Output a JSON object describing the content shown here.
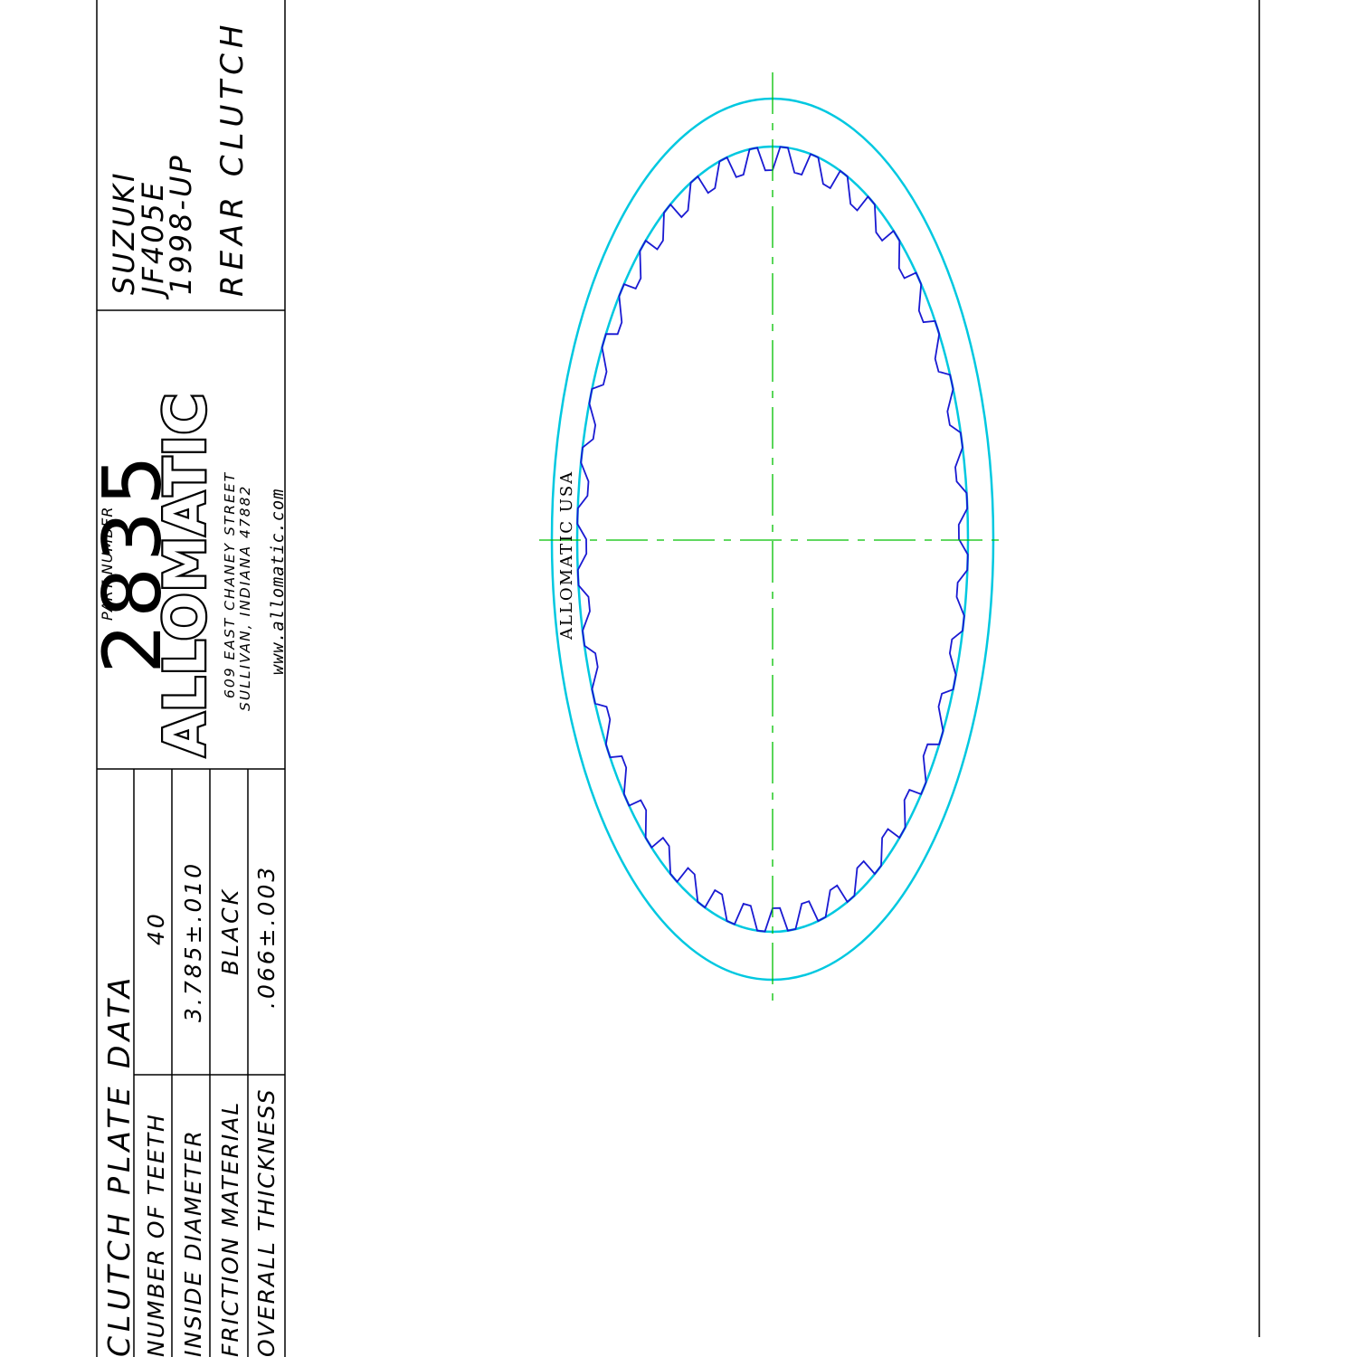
{
  "colors": {
    "border": "#000000",
    "outer_ring": "#00c8e0",
    "teeth": "#1a1ad2",
    "centerline": "#00c000"
  },
  "clutch_plate_data": {
    "header": "CLUTCH PLATE DATA",
    "rows": [
      {
        "label": "NUMBER OF TEETH",
        "value": "40"
      },
      {
        "label": "INSIDE DIAMETER",
        "value": "3.785±.010"
      },
      {
        "label": "FRICTION MATERIAL",
        "value": "BLACK"
      },
      {
        "label": "OVERALL THICKNESS",
        "value": ".066±.003"
      }
    ]
  },
  "part": {
    "number_label": "PART NUMBER",
    "number": "2835",
    "brand": "ALLOMATIC",
    "address_line1": "609 EAST CHANEY STREET",
    "address_line2": "SULLIVAN, INDIANA 47882",
    "website": "www.allomatic.com"
  },
  "application": {
    "make": "SUZUKI",
    "model": "JF405E",
    "years": "1998-UP",
    "position": "REAR CLUTCH"
  },
  "plate": {
    "teeth_count": 40,
    "stamp": "ALLOMATIC USA"
  }
}
